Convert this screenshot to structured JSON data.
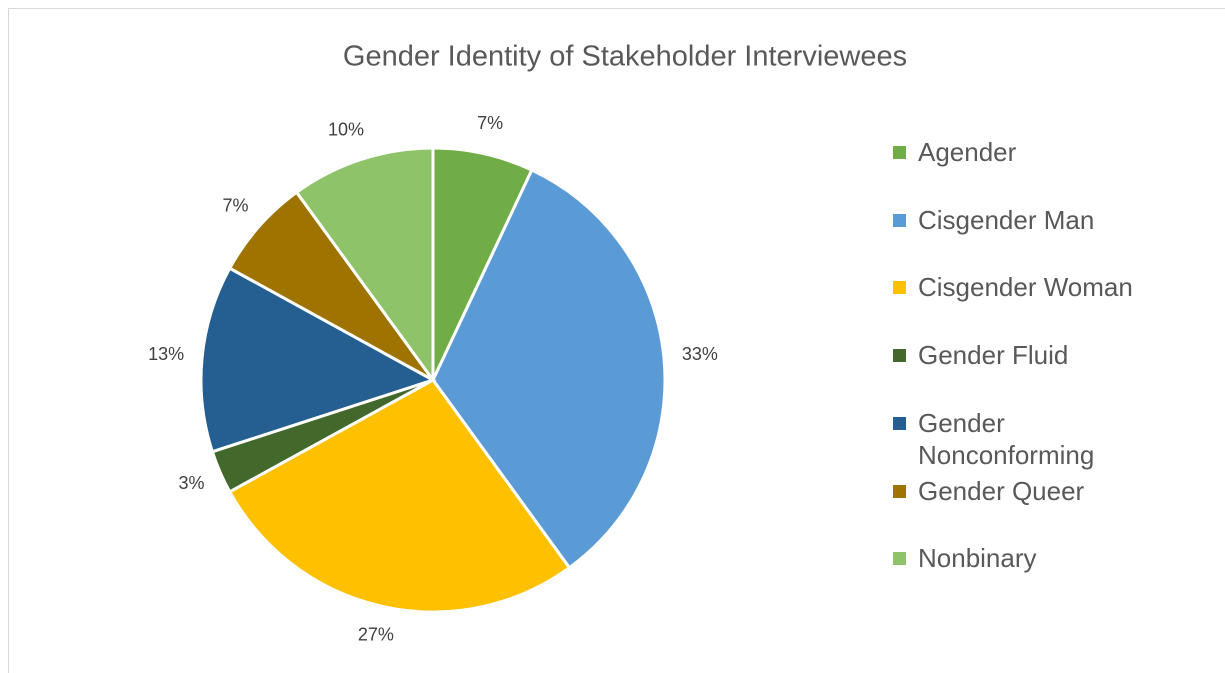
{
  "chart_data": {
    "type": "pie",
    "title": "Gender Identity of Stakeholder Interviewees",
    "categories": [
      "Agender",
      "Cisgender Man",
      "Cisgender Woman",
      "Gender Fluid",
      "Gender Nonconforming",
      "Gender Queer",
      "Nonbinary"
    ],
    "values": [
      7,
      33,
      27,
      3,
      13,
      7,
      10
    ],
    "value_labels": [
      "7%",
      "33%",
      "27%",
      "3%",
      "13%",
      "7%",
      "10%"
    ],
    "colors": [
      "#70ad47",
      "#5b9bd5",
      "#ffc000",
      "#43682b",
      "#255e91",
      "#9e7300",
      "#8fc36a"
    ],
    "legend": "right"
  }
}
